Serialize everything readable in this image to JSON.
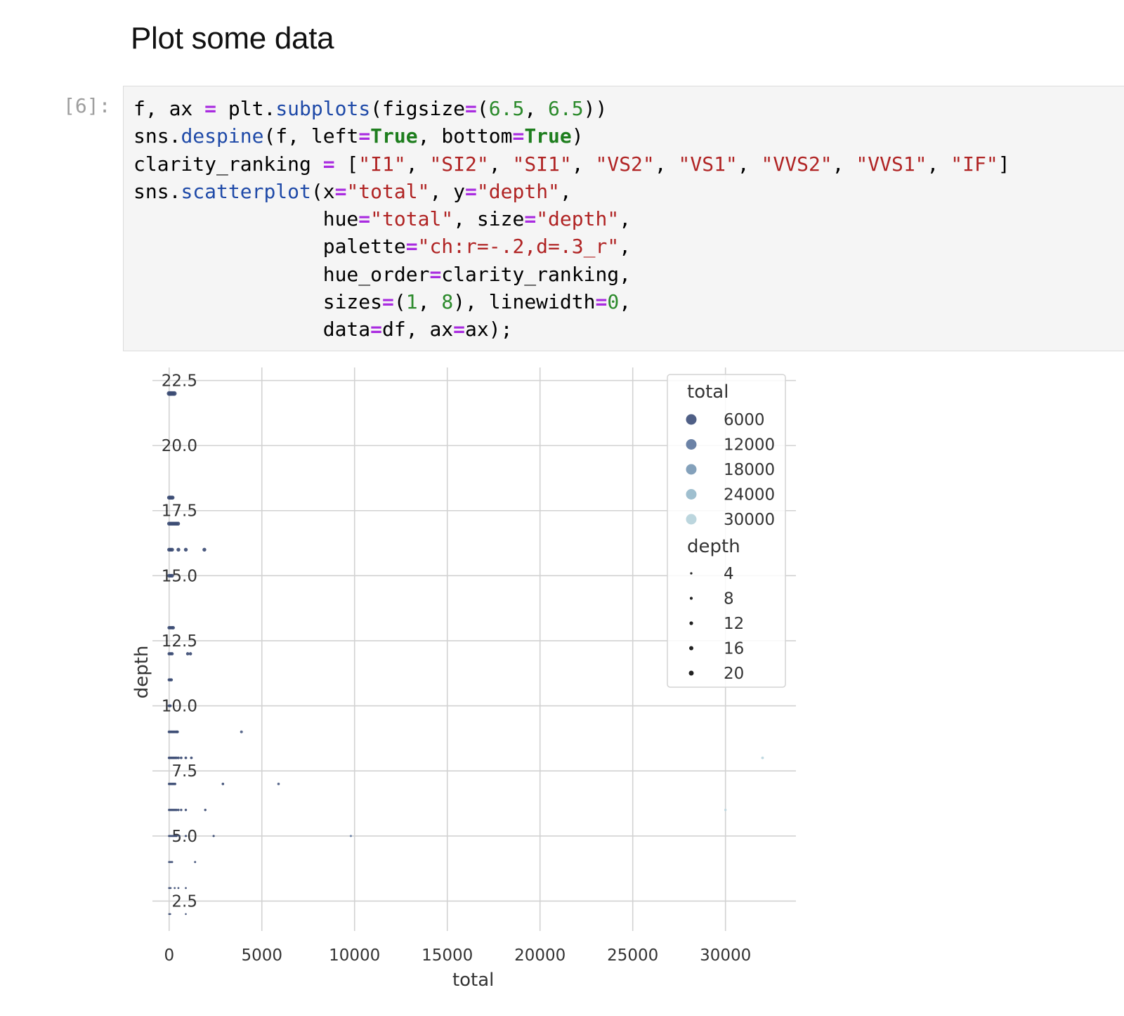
{
  "notebook": {
    "heading": "Plot some data",
    "cell_prompt": "[6]:",
    "code_lines": [
      [
        [
          "f, ax ",
          ""
        ],
        [
          "=",
          "op"
        ],
        [
          " plt.",
          ""
        ],
        [
          "subplots",
          "fn"
        ],
        [
          "(figsize",
          ""
        ],
        [
          "=",
          "op"
        ],
        [
          "(",
          ""
        ],
        [
          "6.5",
          "num"
        ],
        [
          ", ",
          ""
        ],
        [
          "6.5",
          "num"
        ],
        [
          "))",
          ""
        ]
      ],
      [
        [
          "sns.",
          ""
        ],
        [
          "despine",
          "fn"
        ],
        [
          "(f, left",
          ""
        ],
        [
          "=",
          "op"
        ],
        [
          "True",
          "kw"
        ],
        [
          ", bottom",
          ""
        ],
        [
          "=",
          "op"
        ],
        [
          "True",
          "kw"
        ],
        [
          ")",
          ""
        ]
      ],
      [
        [
          "clarity_ranking ",
          ""
        ],
        [
          "=",
          "op"
        ],
        [
          " [",
          ""
        ],
        [
          "\"I1\"",
          "str"
        ],
        [
          ", ",
          ""
        ],
        [
          "\"SI2\"",
          "str"
        ],
        [
          ", ",
          ""
        ],
        [
          "\"SI1\"",
          "str"
        ],
        [
          ", ",
          ""
        ],
        [
          "\"VS2\"",
          "str"
        ],
        [
          ", ",
          ""
        ],
        [
          "\"VS1\"",
          "str"
        ],
        [
          ", ",
          ""
        ],
        [
          "\"VVS2\"",
          "str"
        ],
        [
          ", ",
          ""
        ],
        [
          "\"VVS1\"",
          "str"
        ],
        [
          ", ",
          ""
        ],
        [
          "\"IF\"",
          "str"
        ],
        [
          "]",
          ""
        ]
      ],
      [
        [
          "sns.",
          ""
        ],
        [
          "scatterplot",
          "fn"
        ],
        [
          "(x",
          ""
        ],
        [
          "=",
          "op"
        ],
        [
          "\"total\"",
          "str"
        ],
        [
          ", y",
          ""
        ],
        [
          "=",
          "op"
        ],
        [
          "\"depth\"",
          "str"
        ],
        [
          ",",
          ""
        ]
      ],
      [
        [
          "                hue",
          ""
        ],
        [
          "=",
          "op"
        ],
        [
          "\"total\"",
          "str"
        ],
        [
          ", size",
          ""
        ],
        [
          "=",
          "op"
        ],
        [
          "\"depth\"",
          "str"
        ],
        [
          ",",
          ""
        ]
      ],
      [
        [
          "                palette",
          ""
        ],
        [
          "=",
          "op"
        ],
        [
          "\"ch:r=-.2,d=.3_r\"",
          "str"
        ],
        [
          ",",
          ""
        ]
      ],
      [
        [
          "                hue_order",
          ""
        ],
        [
          "=",
          "op"
        ],
        [
          "clarity_ranking,",
          ""
        ]
      ],
      [
        [
          "                sizes",
          ""
        ],
        [
          "=",
          "op"
        ],
        [
          "(",
          ""
        ],
        [
          "1",
          "num"
        ],
        [
          ", ",
          ""
        ],
        [
          "8",
          "num"
        ],
        [
          "), linewidth",
          ""
        ],
        [
          "=",
          "op"
        ],
        [
          "0",
          "num"
        ],
        [
          ",",
          ""
        ]
      ],
      [
        [
          "                data",
          ""
        ],
        [
          "=",
          "op"
        ],
        [
          "df, ax",
          ""
        ],
        [
          "=",
          "op"
        ],
        [
          "ax);",
          ""
        ]
      ]
    ]
  },
  "chart_data": {
    "type": "scatter",
    "xlabel": "total",
    "ylabel": "depth",
    "xlim": [
      -900,
      33800
    ],
    "ylim": [
      1.35,
      23.0
    ],
    "xticks": [
      0,
      5000,
      10000,
      15000,
      20000,
      25000,
      30000
    ],
    "yticks": [
      2.5,
      5.0,
      7.5,
      10.0,
      12.5,
      15.0,
      17.5,
      20.0,
      22.5
    ],
    "ytick_labels": [
      "2.5",
      "5.0",
      "7.5",
      "10.0",
      "12.5",
      "15.0",
      "17.5",
      "20.0",
      "22.5"
    ],
    "grid": true,
    "legend_position": "top-right",
    "legend": {
      "hue_title": "total",
      "hue_entries": [
        {
          "label": "6000",
          "color": "#4f5f86"
        },
        {
          "label": "12000",
          "color": "#6b82a6"
        },
        {
          "label": "18000",
          "color": "#84a1bb"
        },
        {
          "label": "24000",
          "color": "#9fbfcf"
        },
        {
          "label": "30000",
          "color": "#bcd6de"
        }
      ],
      "size_title": "depth",
      "size_entries": [
        {
          "label": "4",
          "radius": 1.6
        },
        {
          "label": "8",
          "radius": 2.1
        },
        {
          "label": "12",
          "radius": 2.6
        },
        {
          "label": "16",
          "radius": 3.0
        },
        {
          "label": "20",
          "radius": 3.5
        }
      ]
    },
    "points": [
      [
        0,
        22
      ],
      [
        60,
        22
      ],
      [
        120,
        22
      ],
      [
        200,
        22
      ],
      [
        280,
        22
      ],
      [
        0,
        18
      ],
      [
        60,
        18
      ],
      [
        120,
        18
      ],
      [
        180,
        18
      ],
      [
        0,
        17
      ],
      [
        80,
        17
      ],
      [
        160,
        17
      ],
      [
        240,
        17
      ],
      [
        320,
        17
      ],
      [
        400,
        17
      ],
      [
        480,
        17
      ],
      [
        0,
        16
      ],
      [
        80,
        16
      ],
      [
        160,
        16
      ],
      [
        500,
        16
      ],
      [
        900,
        16
      ],
      [
        1900,
        16
      ],
      [
        0,
        15
      ],
      [
        80,
        15
      ],
      [
        160,
        15
      ],
      [
        0,
        13
      ],
      [
        80,
        13
      ],
      [
        160,
        13
      ],
      [
        220,
        13
      ],
      [
        0,
        12
      ],
      [
        80,
        12
      ],
      [
        160,
        12
      ],
      [
        1000,
        12
      ],
      [
        1150,
        12
      ],
      [
        0,
        11
      ],
      [
        60,
        11
      ],
      [
        120,
        11
      ],
      [
        0,
        10
      ],
      [
        60,
        10
      ],
      [
        0,
        9
      ],
      [
        80,
        9
      ],
      [
        160,
        9
      ],
      [
        240,
        9
      ],
      [
        320,
        9
      ],
      [
        400,
        9
      ],
      [
        450,
        9
      ],
      [
        3900,
        9
      ],
      [
        0,
        8
      ],
      [
        80,
        8
      ],
      [
        160,
        8
      ],
      [
        240,
        8
      ],
      [
        320,
        8
      ],
      [
        400,
        8
      ],
      [
        500,
        8
      ],
      [
        650,
        8
      ],
      [
        900,
        8
      ],
      [
        1200,
        8
      ],
      [
        32000,
        8
      ],
      [
        0,
        7
      ],
      [
        80,
        7
      ],
      [
        160,
        7
      ],
      [
        240,
        7
      ],
      [
        320,
        7
      ],
      [
        2900,
        7
      ],
      [
        5900,
        7
      ],
      [
        0,
        6
      ],
      [
        80,
        6
      ],
      [
        160,
        6
      ],
      [
        240,
        6
      ],
      [
        320,
        6
      ],
      [
        400,
        6
      ],
      [
        500,
        6
      ],
      [
        650,
        6
      ],
      [
        900,
        6
      ],
      [
        1950,
        6
      ],
      [
        30000,
        6
      ],
      [
        0,
        5
      ],
      [
        80,
        5
      ],
      [
        160,
        5
      ],
      [
        240,
        5
      ],
      [
        320,
        5
      ],
      [
        400,
        5
      ],
      [
        550,
        5
      ],
      [
        900,
        5
      ],
      [
        2400,
        5
      ],
      [
        9800,
        5
      ],
      [
        0,
        4
      ],
      [
        80,
        4
      ],
      [
        160,
        4
      ],
      [
        1400,
        4
      ],
      [
        0,
        3
      ],
      [
        80,
        3
      ],
      [
        300,
        3
      ],
      [
        500,
        3
      ],
      [
        900,
        3
      ],
      [
        0,
        2
      ],
      [
        60,
        2
      ],
      [
        900,
        2
      ]
    ]
  }
}
